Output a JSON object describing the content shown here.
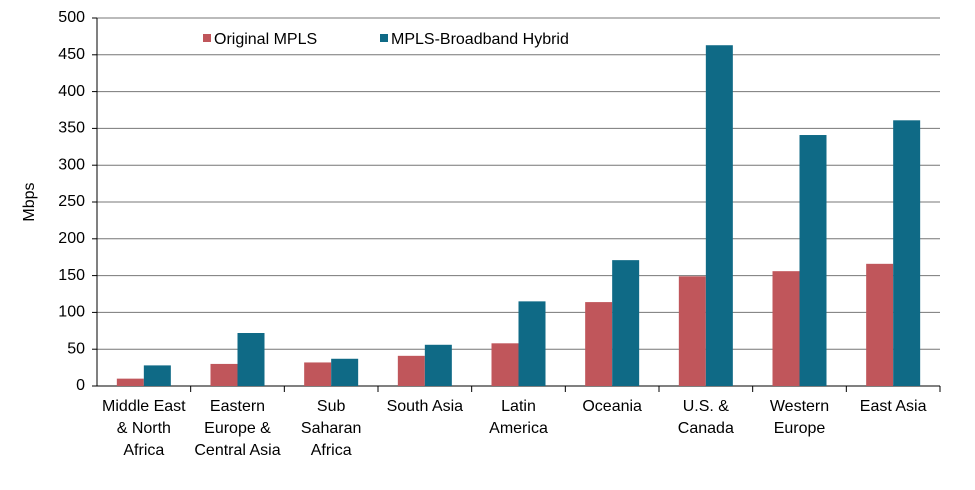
{
  "chart_data": {
    "type": "bar",
    "y_label": "Mbps",
    "categories": [
      "Middle East & North Africa",
      "Eastern Europe & Central Asia",
      "Sub Saharan Africa",
      "South Asia",
      "Latin America",
      "Oceania",
      "U.S. & Canada",
      "Western Europe",
      "East Asia"
    ],
    "series": [
      {
        "name": "Original MPLS",
        "color": "#c0565b",
        "values": [
          10,
          30,
          32,
          41,
          58,
          114,
          149,
          156,
          166
        ]
      },
      {
        "name": "MPLS-Broadband Hybrid",
        "color": "#0f6a86",
        "values": [
          28,
          72,
          37,
          56,
          115,
          171,
          463,
          341,
          361
        ]
      }
    ],
    "ylim": [
      0,
      500
    ],
    "yticks": [
      0,
      50,
      100,
      150,
      200,
      250,
      300,
      350,
      400,
      450,
      500
    ],
    "grid": true
  }
}
